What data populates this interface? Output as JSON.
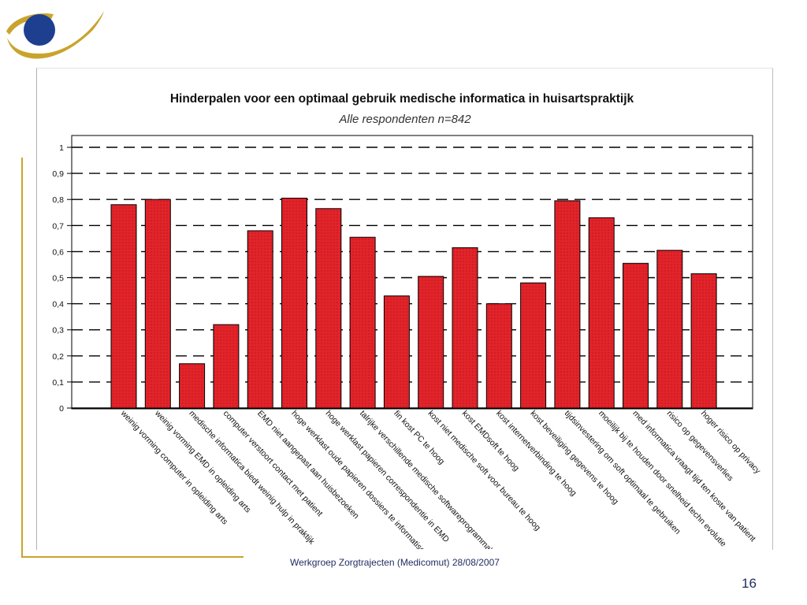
{
  "footer": {
    "text": "Werkgroep Zorgtrajecten (Medicomut) 28/08/2007",
    "slide_number": "16"
  },
  "colors": {
    "bar_fill": "#e3232a",
    "bar_stroke": "#000000",
    "logo_blue": "#1e3e8f",
    "logo_gold": "#c9a42c",
    "gridline": "#000000",
    "text": "#1f2a5e"
  },
  "chart_data": {
    "type": "bar",
    "title": "Hinderpalen voor een optimaal gebruik medische informatica in huisartspraktijk",
    "subtitle": "Alle respondenten n=842",
    "xlabel": "",
    "ylabel": "",
    "ylim": [
      0,
      1
    ],
    "yticks": [
      "0",
      "0,1",
      "0,2",
      "0,3",
      "0,4",
      "0,5",
      "0,6",
      "0,7",
      "0,8",
      "0,9",
      "1"
    ],
    "grid": "horizontal dashed",
    "categories": [
      "weinig vorming computer in opleiding arts",
      "weinig vorming EMD in opleiding arts",
      "medische informatica biedt weinig hulp in praktijk",
      "computer verstoort contact met patient",
      "EMD niet aangepast aan huisbezoeken",
      "hoge werklast oude papieren dossiers te informatiseren",
      "hoge werklast papieren correspondentie in EMD",
      "talrijke verschillende medische softwareprogramma's",
      "fin kost PC te hoog",
      "kost niet medische soft voor bureau te hoog",
      "kost EMDsoft te hoog",
      "kost internetverbinding te hoog",
      "kost beveiliging gegevens te hoog",
      "tijdsinvestering om soft optimaal te gebruiken",
      "moeilijk bij te houden door snelheid techn evolutie",
      "med informatica vraagt tijd ten koste van patient",
      "risico op gegevensverlies",
      "hoger risico op privacy"
    ],
    "values": [
      0.78,
      0.8,
      0.17,
      0.32,
      0.68,
      0.805,
      0.765,
      0.655,
      0.43,
      0.505,
      0.615,
      0.4,
      0.48,
      0.795,
      0.73,
      0.555,
      0.605,
      0.515
    ]
  }
}
